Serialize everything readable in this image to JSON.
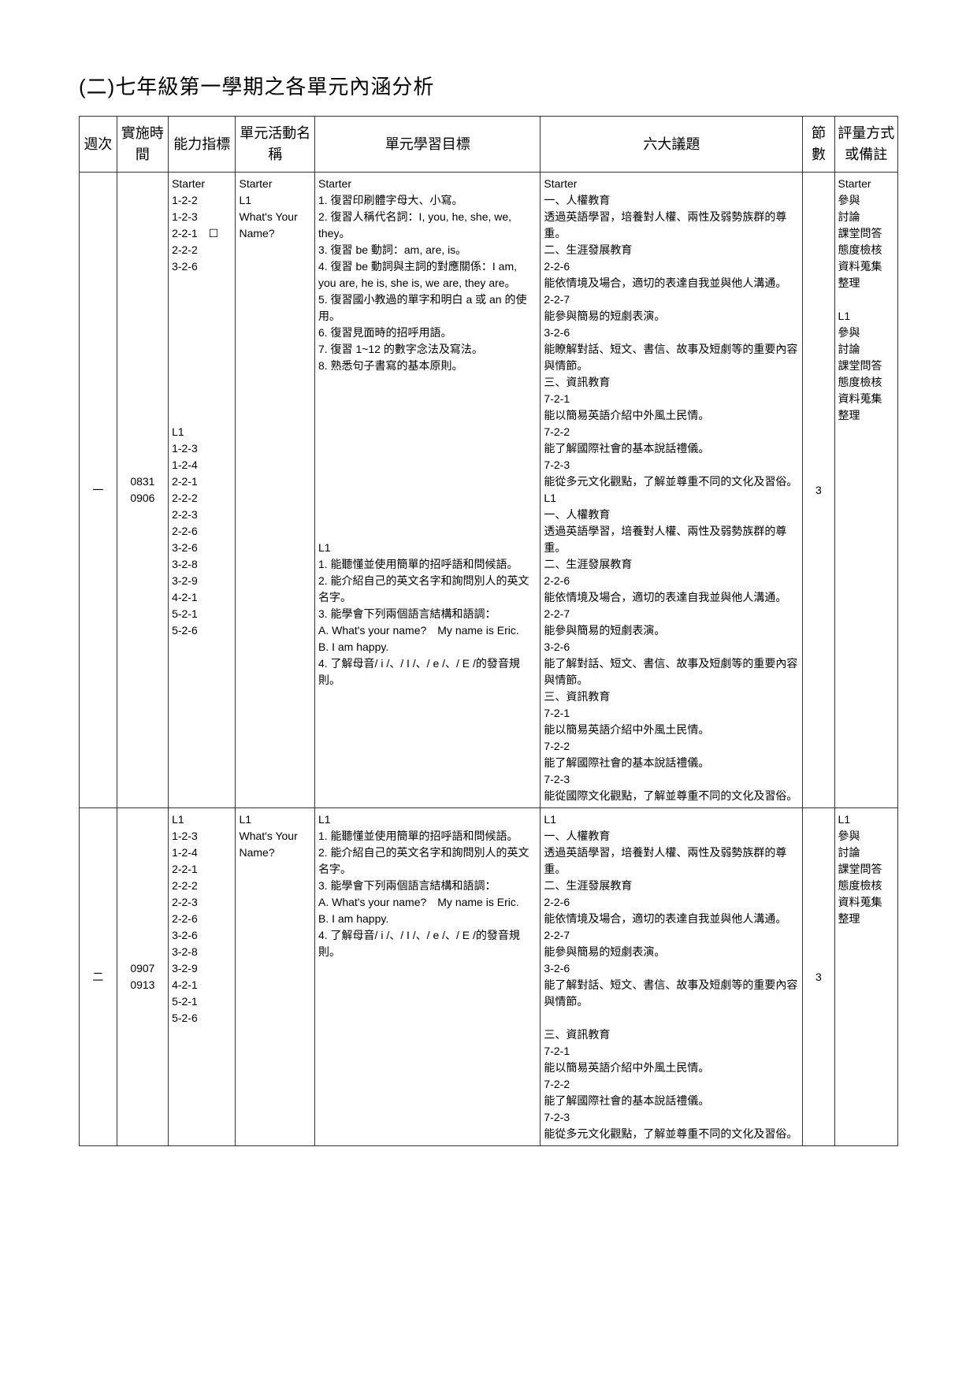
{
  "title": "(二)七年級第一學期之各單元內涵分析",
  "headers": {
    "week": "週次",
    "time": "實施時間",
    "ability": "能力指標",
    "unit": "單元活動名稱",
    "objectives": "單元學習目標",
    "topics": "六大議題",
    "periods": "節數",
    "evaluation": "評量方式或備註"
  },
  "rows": [
    {
      "week": "一",
      "time": "0831\n0906",
      "ability": "Starter\n1-2-2\n1-2-3\n2-2-1　☐\n2-2-2\n3-2-6\n\n\n\n\n\n\n\n\n\nL1\n1-2-3\n1-2-4\n2-2-1\n2-2-2\n2-2-3\n2-2-6\n3-2-6\n3-2-8\n3-2-9\n4-2-1\n5-2-1\n5-2-6",
      "unit": "Starter\nL1\nWhat's Your Name?",
      "objectives": "Starter\n1. 復習印刷體字母大、小寫。\n2. 復習人稱代名詞：I, you, he, she, we, they。\n3. 復習 be 動詞：am, are, is。\n4. 復習 be 動詞與主詞的對應關係：I am, you are, he is, she is, we are, they are。\n5. 復習國小教過的單字和明白 a 或 an 的使用。\n6. 復習見面時的招呼用語。\n7. 復習 1~12 的數字念法及寫法。\n8. 熟悉句子書寫的基本原則。\n\n\n\n\n\n\n\n\n\n\nL1\n1. 能聽懂並使用簡單的招呼語和問候語。\n2. 能介紹自己的英文名字和詢問別人的英文名字。\n3. 能學會下列兩個語言結構和語調：\nA. What's your name?　My name is Eric.\nB. I am happy.\n4. 了解母音/ i /、/ I /、/ e /、/ E /的發音規則。",
      "topics": "Starter\n一、人權教育\n透過英語學習，培養對人權、兩性及弱勢族群的尊重。\n二、生涯發展教育\n2-2-6\n能依情境及場合，適切的表達自我並與他人溝通。\n2-2-7\n能參與簡易的短劇表演。\n3-2-6\n能瞭解對話、短文、書信、故事及短劇等的重要內容與情節。\n三、資訊教育\n7-2-1\n能以簡易英語介紹中外風土民情。\n7-2-2\n能了解國際社會的基本說話禮儀。\n7-2-3\n能從多元文化觀點，了解並尊重不同的文化及習俗。\nL1\n一、人權教育\n透過英語學習，培養對人權、兩性及弱勢族群的尊重。\n二、生涯發展教育\n2-2-6\n能依情境及場合，適切的表達自我並與他人溝通。\n2-2-7\n能參與簡易的短劇表演。\n3-2-6\n能了解對話、短文、書信、故事及短劇等的重要內容與情節。\n三、資訊教育\n7-2-1\n能以簡易英語介紹中外風土民情。\n7-2-2\n能了解國際社會的基本說話禮儀。\n7-2-3\n能從國際文化觀點，了解並尊重不同的文化及習俗。",
      "periods": "3",
      "evaluation": "Starter\n參與\n討論\n課堂問答\n態度檢核\n資料蒐集\n整理\n\nL1\n參與\n討論\n課堂問答\n態度檢核\n資料蒐集\n整理"
    },
    {
      "week": "二",
      "time": "0907\n0913",
      "ability": "L1\n1-2-3\n1-2-4\n2-2-1\n2-2-2\n2-2-3\n2-2-6\n3-2-6\n3-2-8\n3-2-9\n4-2-1\n5-2-1\n5-2-6",
      "unit": "L1\nWhat's Your Name?",
      "objectives": "L1\n1. 能聽懂並使用簡單的招呼語和問候語。\n2. 能介紹自己的英文名字和詢問別人的英文名字。\n3. 能學會下列兩個語言結構和語調：\nA. What's your name?　My name is Eric.\nB. I am happy.\n4. 了解母音/ i /、/ I /、/ e /、/ E /的發音規則。",
      "topics": "L1\n一、人權教育\n透過英語學習，培養對人權、兩性及弱勢族群的尊重。\n二、生涯發展教育\n2-2-6\n能依情境及場合，適切的表達自我並與他人溝通。\n2-2-7\n能參與簡易的短劇表演。\n3-2-6\n能了解對話、短文、書信、故事及短劇等的重要內容與情節。\n\n三、資訊教育\n7-2-1\n能以簡易英語介紹中外風土民情。\n7-2-2\n能了解國際社會的基本說話禮儀。\n7-2-3\n能從多元文化觀點，了解並尊重不同的文化及習俗。",
      "periods": "3",
      "evaluation": "L1\n參與\n討論\n課堂問答\n態度檢核\n資料蒐集\n整理"
    }
  ]
}
